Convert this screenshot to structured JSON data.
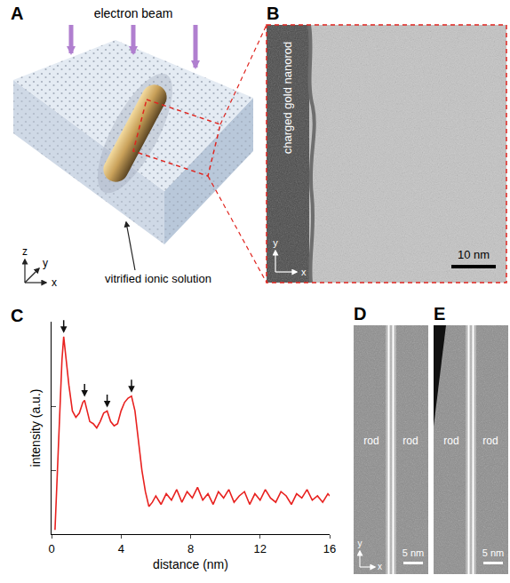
{
  "panels": {
    "A": {
      "beam": "electron beam",
      "medium": "vitrified ionic solution",
      "axes": [
        "x",
        "y",
        "z"
      ]
    },
    "B": {
      "rod": "charged gold nanorod",
      "scale_bar": "10 nm",
      "axes": [
        "y",
        "x"
      ]
    },
    "D": {
      "rods": [
        "rod",
        "rod"
      ],
      "scale_bar": "5 nm",
      "axes": [
        "y",
        "x"
      ]
    },
    "E": {
      "rods": [
        "rod",
        "rod"
      ],
      "scale_bar": "5 nm"
    }
  },
  "chart_data": {
    "panel": "C",
    "type": "line",
    "color": "#e8211f",
    "line_style": "solid",
    "x_label": "distance (nm)",
    "y_label": "intensity (a.u.)",
    "x": [
      0.2,
      0.4,
      0.6,
      0.7,
      0.8,
      1.0,
      1.2,
      1.4,
      1.6,
      1.8,
      1.9,
      2.0,
      2.2,
      2.4,
      2.6,
      2.8,
      3.0,
      3.2,
      3.4,
      3.6,
      3.8,
      4.0,
      4.2,
      4.4,
      4.6,
      4.8,
      5.0,
      5.2,
      5.4,
      5.6,
      5.8,
      6.0,
      6.3,
      6.6,
      6.9,
      7.2,
      7.5,
      7.8,
      8.1,
      8.4,
      8.7,
      9.0,
      9.3,
      9.6,
      9.9,
      10.2,
      10.5,
      10.8,
      11.1,
      11.4,
      11.7,
      12.0,
      12.3,
      12.6,
      12.9,
      13.2,
      13.5,
      13.8,
      14.1,
      14.4,
      14.7,
      15.0,
      15.3,
      15.6,
      15.9,
      16.0
    ],
    "values": [
      0.02,
      0.4,
      0.82,
      0.93,
      0.85,
      0.7,
      0.58,
      0.55,
      0.57,
      0.62,
      0.63,
      0.6,
      0.53,
      0.52,
      0.5,
      0.53,
      0.57,
      0.58,
      0.53,
      0.51,
      0.52,
      0.58,
      0.62,
      0.64,
      0.65,
      0.58,
      0.45,
      0.3,
      0.2,
      0.13,
      0.15,
      0.18,
      0.14,
      0.19,
      0.16,
      0.21,
      0.15,
      0.2,
      0.17,
      0.22,
      0.16,
      0.19,
      0.14,
      0.2,
      0.17,
      0.21,
      0.15,
      0.18,
      0.2,
      0.14,
      0.19,
      0.16,
      0.21,
      0.17,
      0.15,
      0.2,
      0.18,
      0.14,
      0.19,
      0.17,
      0.21,
      0.16,
      0.18,
      0.15,
      0.19,
      0.18
    ],
    "marked_peaks": [
      0.7,
      1.9,
      3.2,
      4.6
    ],
    "xlim": [
      0,
      16
    ],
    "xticks": [
      0,
      4,
      8,
      12,
      16
    ],
    "ylim": [
      0,
      1
    ],
    "yticks": [
      0.3,
      0.6
    ],
    "tick_labels": "x",
    "grid": false
  }
}
